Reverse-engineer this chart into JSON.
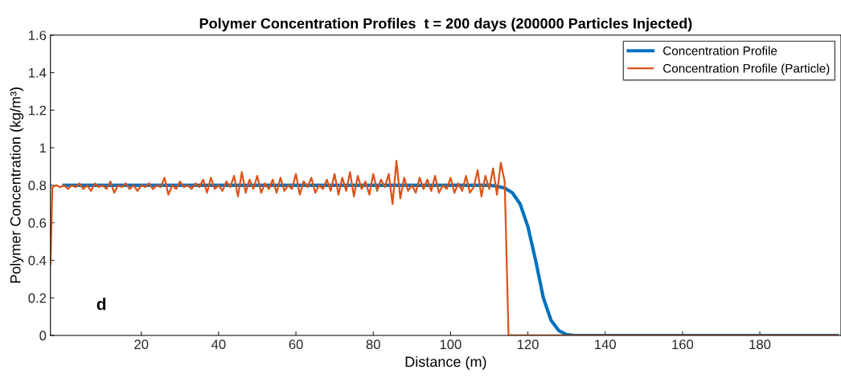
{
  "chart_data": {
    "type": "line",
    "title": "Polymer Concentration Profiles  t = 200 days (200000 Particles Injected)",
    "xlabel": "Distance (m)",
    "ylabel": "Polymer Concentration (kg/m³)",
    "xlim": [
      -3.5,
      201
    ],
    "xticks": [
      20,
      40,
      60,
      80,
      100,
      120,
      140,
      160,
      180
    ],
    "ylim": [
      0,
      1.6
    ],
    "yticks": [
      0,
      0.2,
      0.4,
      0.6,
      0.8,
      1,
      1.2,
      1.4,
      1.6
    ],
    "legend": "top right",
    "grid": false,
    "annotations": [
      "d"
    ],
    "series": [
      {
        "name": "Concentration Profile",
        "color": "#0072bd",
        "x": [
          0,
          20,
          60,
          100,
          108,
          110,
          112,
          114,
          116,
          118,
          120,
          122,
          124,
          126,
          128,
          130,
          132,
          200
        ],
        "values": [
          0.8,
          0.8,
          0.8,
          0.8,
          0.8,
          0.8,
          0.795,
          0.785,
          0.76,
          0.7,
          0.58,
          0.4,
          0.2,
          0.08,
          0.025,
          0.005,
          0,
          0
        ]
      },
      {
        "name": "Concentration Profile (Particle)",
        "color": "#d95319",
        "x": [
          -3.5,
          -3,
          -2,
          -1,
          0,
          1,
          2,
          3,
          4,
          5,
          6,
          7,
          8,
          9,
          10,
          11,
          12,
          13,
          14,
          15,
          16,
          17,
          18,
          19,
          20,
          21,
          22,
          23,
          24,
          25,
          26,
          27,
          28,
          29,
          30,
          31,
          32,
          33,
          34,
          35,
          36,
          37,
          38,
          39,
          40,
          41,
          42,
          43,
          44,
          45,
          46,
          47,
          48,
          49,
          50,
          51,
          52,
          53,
          54,
          55,
          56,
          57,
          58,
          59,
          60,
          61,
          62,
          63,
          64,
          65,
          66,
          67,
          68,
          69,
          70,
          71,
          72,
          73,
          74,
          75,
          76,
          77,
          78,
          79,
          80,
          81,
          82,
          83,
          84,
          85,
          86,
          87,
          88,
          89,
          90,
          91,
          92,
          93,
          94,
          95,
          96,
          97,
          98,
          99,
          100,
          101,
          102,
          103,
          104,
          105,
          106,
          107,
          108,
          109,
          110,
          111,
          112,
          113,
          114,
          115,
          116,
          117,
          200
        ],
        "values": [
          0.38,
          0.79,
          0.8,
          0.79,
          0.8,
          0.78,
          0.8,
          0.79,
          0.81,
          0.78,
          0.8,
          0.77,
          0.81,
          0.79,
          0.8,
          0.78,
          0.82,
          0.76,
          0.8,
          0.79,
          0.81,
          0.78,
          0.8,
          0.77,
          0.8,
          0.79,
          0.81,
          0.78,
          0.8,
          0.79,
          0.84,
          0.75,
          0.8,
          0.78,
          0.82,
          0.79,
          0.8,
          0.78,
          0.81,
          0.79,
          0.83,
          0.76,
          0.84,
          0.78,
          0.8,
          0.77,
          0.82,
          0.79,
          0.85,
          0.74,
          0.87,
          0.76,
          0.83,
          0.78,
          0.85,
          0.76,
          0.81,
          0.78,
          0.83,
          0.76,
          0.84,
          0.77,
          0.8,
          0.78,
          0.86,
          0.75,
          0.82,
          0.79,
          0.84,
          0.76,
          0.8,
          0.78,
          0.83,
          0.77,
          0.86,
          0.75,
          0.84,
          0.77,
          0.87,
          0.74,
          0.85,
          0.78,
          0.82,
          0.75,
          0.86,
          0.77,
          0.83,
          0.79,
          0.86,
          0.7,
          0.93,
          0.73,
          0.84,
          0.77,
          0.8,
          0.76,
          0.84,
          0.78,
          0.83,
          0.77,
          0.85,
          0.76,
          0.8,
          0.78,
          0.84,
          0.76,
          0.81,
          0.77,
          0.85,
          0.76,
          0.79,
          0.88,
          0.74,
          0.85,
          0.78,
          0.89,
          0.75,
          0.92,
          0.82,
          0.0,
          0.0,
          0.0,
          0.0
        ]
      }
    ]
  }
}
